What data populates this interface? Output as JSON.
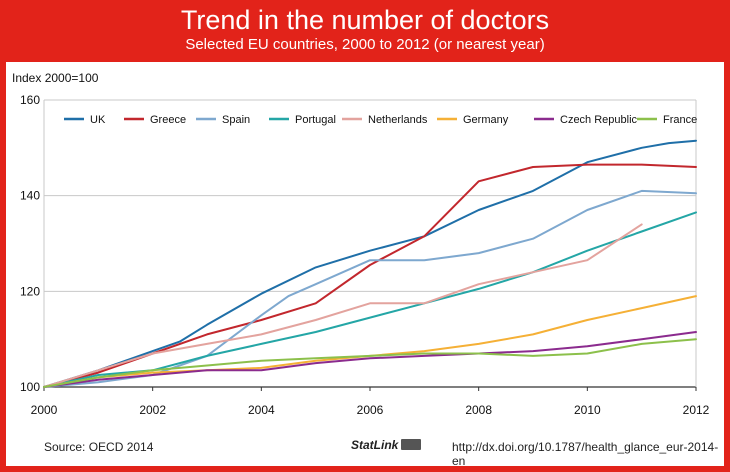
{
  "header": {
    "title": "Trend in the number of doctors",
    "subtitle": "Selected EU countries, 2000 to 2012 (or nearest year)"
  },
  "footer": {
    "source": "Source: OECD 2014",
    "statlink": "StatLink",
    "url": "http://dx.doi.org/10.1787/health_glance_eur-2014-en"
  },
  "colors": {
    "brand_red": "#e2231a",
    "UK": "#1f6fa8",
    "Greece": "#c2272d",
    "Spain": "#7ea8cf",
    "Portugal": "#24a6a6",
    "Netherlands": "#e3a39e",
    "Germany": "#f5b036",
    "Czech Republic": "#8b2b8e",
    "France": "#8cc04b"
  },
  "chart_data": {
    "type": "line",
    "title": "Trend in the number of doctors",
    "subtitle": "Selected EU countries, 2000 to 2012 (or nearest year)",
    "ylabel": "Index 2000=100",
    "xlabel": "",
    "xlim": [
      2000,
      2012
    ],
    "ylim": [
      100,
      160
    ],
    "x_ticks": [
      "2000",
      "2002",
      "2004",
      "2006",
      "2008",
      "2010",
      "2012"
    ],
    "y_ticks": [
      "100",
      "120",
      "140",
      "160"
    ],
    "grid": true,
    "legend_position": "top",
    "series": [
      {
        "name": "UK",
        "x": [
          2000,
          2001,
          2002,
          2002.5,
          2003,
          2004,
          2005,
          2006,
          2007,
          2008,
          2009,
          2010,
          2011,
          2011.5,
          2012
        ],
        "values": [
          100,
          103.5,
          107.5,
          109.5,
          113,
          119.5,
          125,
          128.5,
          131.5,
          137,
          141,
          147,
          150,
          151,
          151.5
        ]
      },
      {
        "name": "Greece",
        "x": [
          2000,
          2001,
          2002,
          2003,
          2004,
          2005,
          2006,
          2007,
          2008,
          2009,
          2010,
          2011,
          2012
        ],
        "values": [
          100,
          103,
          107,
          111,
          114,
          117.5,
          125.5,
          131.5,
          143,
          146,
          146.5,
          146.5,
          146
        ]
      },
      {
        "name": "Spain",
        "x": [
          2000,
          2001,
          2002,
          2003,
          2004,
          2004.5,
          2005,
          2006,
          2007,
          2008,
          2009,
          2010,
          2011,
          2012
        ],
        "values": [
          100,
          101,
          102.5,
          106.5,
          115,
          119,
          121.5,
          126.5,
          126.5,
          128,
          131,
          137,
          141,
          140.5
        ]
      },
      {
        "name": "Portugal",
        "x": [
          2000,
          2001,
          2002,
          2003,
          2004,
          2005,
          2006,
          2007,
          2008,
          2009,
          2010,
          2011,
          2012
        ],
        "values": [
          100,
          102.5,
          103.5,
          106.5,
          109,
          111.5,
          114.5,
          117.5,
          120.5,
          124,
          128.5,
          132.5,
          136.5
        ]
      },
      {
        "name": "Netherlands",
        "x": [
          2000,
          2001,
          2002,
          2003,
          2004,
          2005,
          2006,
          2007,
          2008,
          2009,
          2010,
          2011
        ],
        "values": [
          100,
          103.5,
          107,
          109,
          111,
          114,
          117.5,
          117.5,
          121.5,
          124,
          126.5,
          134
        ]
      },
      {
        "name": "Germany",
        "x": [
          2000,
          2001,
          2002,
          2003,
          2004,
          2005,
          2006,
          2007,
          2008,
          2009,
          2010,
          2011,
          2012
        ],
        "values": [
          100,
          102,
          103,
          103.5,
          104,
          105.5,
          106.5,
          107.5,
          109,
          111,
          114,
          116.5,
          119
        ]
      },
      {
        "name": "Czech Republic",
        "x": [
          2000,
          2001,
          2002,
          2003,
          2004,
          2005,
          2006,
          2007,
          2008,
          2009,
          2010,
          2011,
          2012
        ],
        "values": [
          100,
          101.5,
          102.5,
          103.5,
          103.5,
          105,
          106,
          106.5,
          107,
          107.5,
          108.5,
          110,
          111.5
        ]
      },
      {
        "name": "France",
        "x": [
          2000,
          2001,
          2002,
          2003,
          2004,
          2005,
          2006,
          2007,
          2008,
          2009,
          2010,
          2011,
          2012
        ],
        "values": [
          100,
          102,
          103.5,
          104.5,
          105.5,
          106,
          106.5,
          107,
          107,
          106.5,
          107,
          109,
          110
        ]
      }
    ]
  }
}
